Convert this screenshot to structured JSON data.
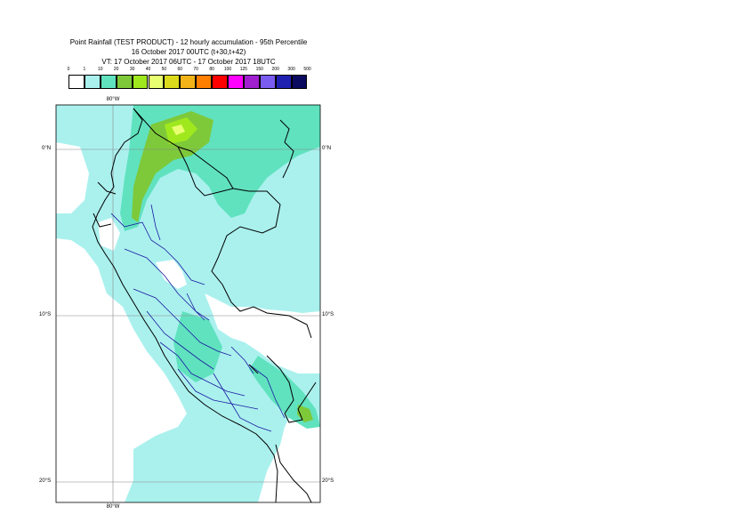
{
  "header": {
    "line1": "Point Rainfall (TEST PRODUCT) - 12 hourly accumulation - 95th Percentile",
    "line2": "16 October 2017 00UTC (t+30,t+42)",
    "line3": "VT: 17 October 2017 06UTC - 17 October 2017 18UTC"
  },
  "legend": {
    "thresholds": [
      "0",
      "1",
      "10",
      "20",
      "30",
      "40",
      "50",
      "60",
      "70",
      "80",
      "100",
      "125",
      "150",
      "200",
      "300",
      "500"
    ],
    "colors": [
      "#ffffff",
      "#aaf1ee",
      "#60e2bf",
      "#7ec93a",
      "#a0e81e",
      "#e8ff70",
      "#dbdb1c",
      "#f2b318",
      "#ff7f00",
      "#ff0000",
      "#ff00ff",
      "#a020d0",
      "#7a5cf0",
      "#2020b0",
      "#0a0a60"
    ]
  },
  "axes": {
    "lat_top": "0°N",
    "lat_mid": "10°S",
    "lat_bottom": "20°S",
    "lon_top": "80°W",
    "lon_bottom": "80°W"
  }
}
